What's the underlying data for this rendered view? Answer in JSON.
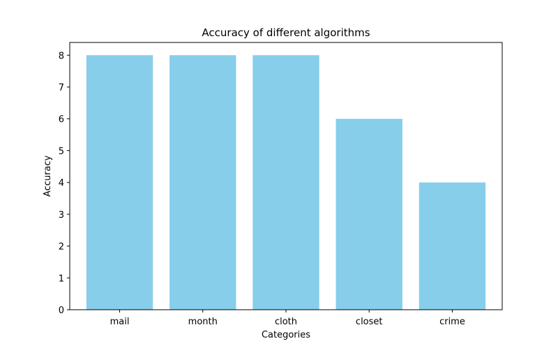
{
  "chart_data": {
    "type": "bar",
    "title": "Accuracy of different algorithms",
    "xlabel": "Categories",
    "ylabel": "Accuracy",
    "categories": [
      "mail",
      "month",
      "cloth",
      "closet",
      "crime"
    ],
    "values": [
      8,
      8,
      8,
      6,
      4
    ],
    "ylim": [
      0,
      8.4
    ],
    "yticks": [
      0,
      1,
      2,
      3,
      4,
      5,
      6,
      7,
      8
    ],
    "grid": false,
    "legend": "none",
    "bar_color": "#87ceeb"
  }
}
